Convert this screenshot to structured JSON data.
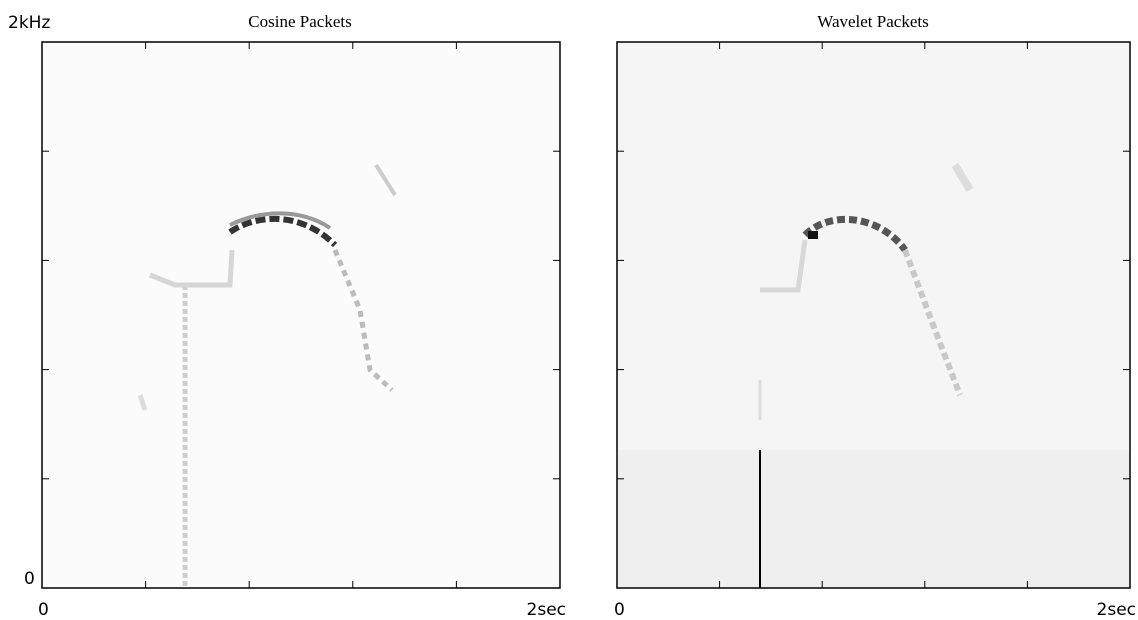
{
  "y_labels": [
    "2kHz",
    "0"
  ],
  "panels": [
    {
      "title": "Cosine Packets",
      "x_labels": [
        "0",
        "2sec"
      ]
    },
    {
      "title": "Wavelet Packets",
      "x_labels": [
        "0",
        "2sec"
      ]
    }
  ]
}
